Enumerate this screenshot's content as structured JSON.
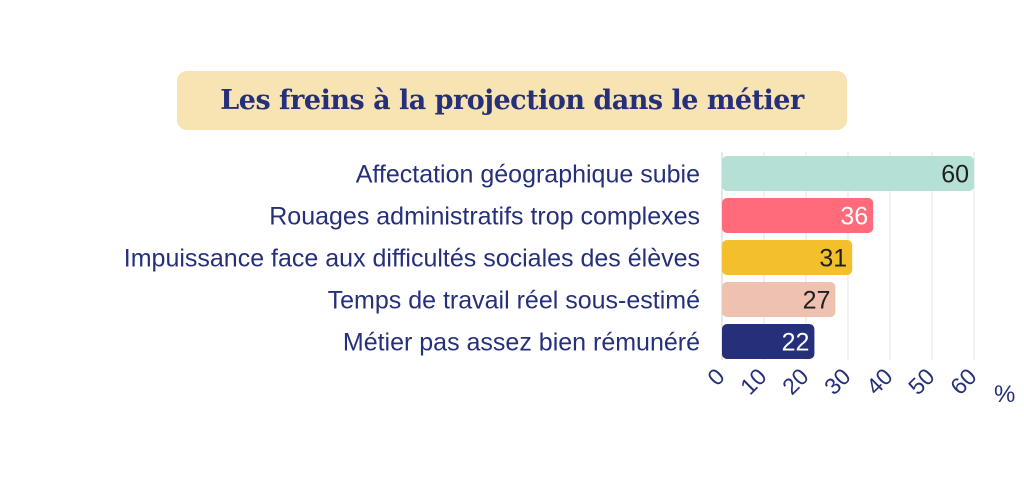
{
  "chart_data": {
    "type": "bar",
    "orientation": "horizontal",
    "title": "Les freins à la projection dans le métier",
    "categories": [
      "Affectation géographique subie",
      "Rouages administratifs trop complexes",
      "Impuissance face aux difficultés sociales des élèves",
      "Temps de travail réel sous-estimé",
      "Métier pas assez bien rémunéré"
    ],
    "values": [
      60,
      36,
      31,
      27,
      22
    ],
    "value_labels": [
      "60",
      "36",
      "31",
      "27",
      "22"
    ],
    "bar_colors": [
      "#b5e0d5",
      "#ff6b7a",
      "#f4bf2d",
      "#efc1b0",
      "#26307a"
    ],
    "value_label_colors": [
      "#1f1f1f",
      "#ffffff",
      "#1f1f1f",
      "#1f1f1f",
      "#ffffff"
    ],
    "x_ticks": [
      "0",
      "10",
      "20",
      "30",
      "40",
      "50",
      "60"
    ],
    "x_unit": "%",
    "xlim": [
      0,
      60
    ],
    "grid": true,
    "title_background": "#f8e3b3",
    "text_color": "#26307a"
  }
}
